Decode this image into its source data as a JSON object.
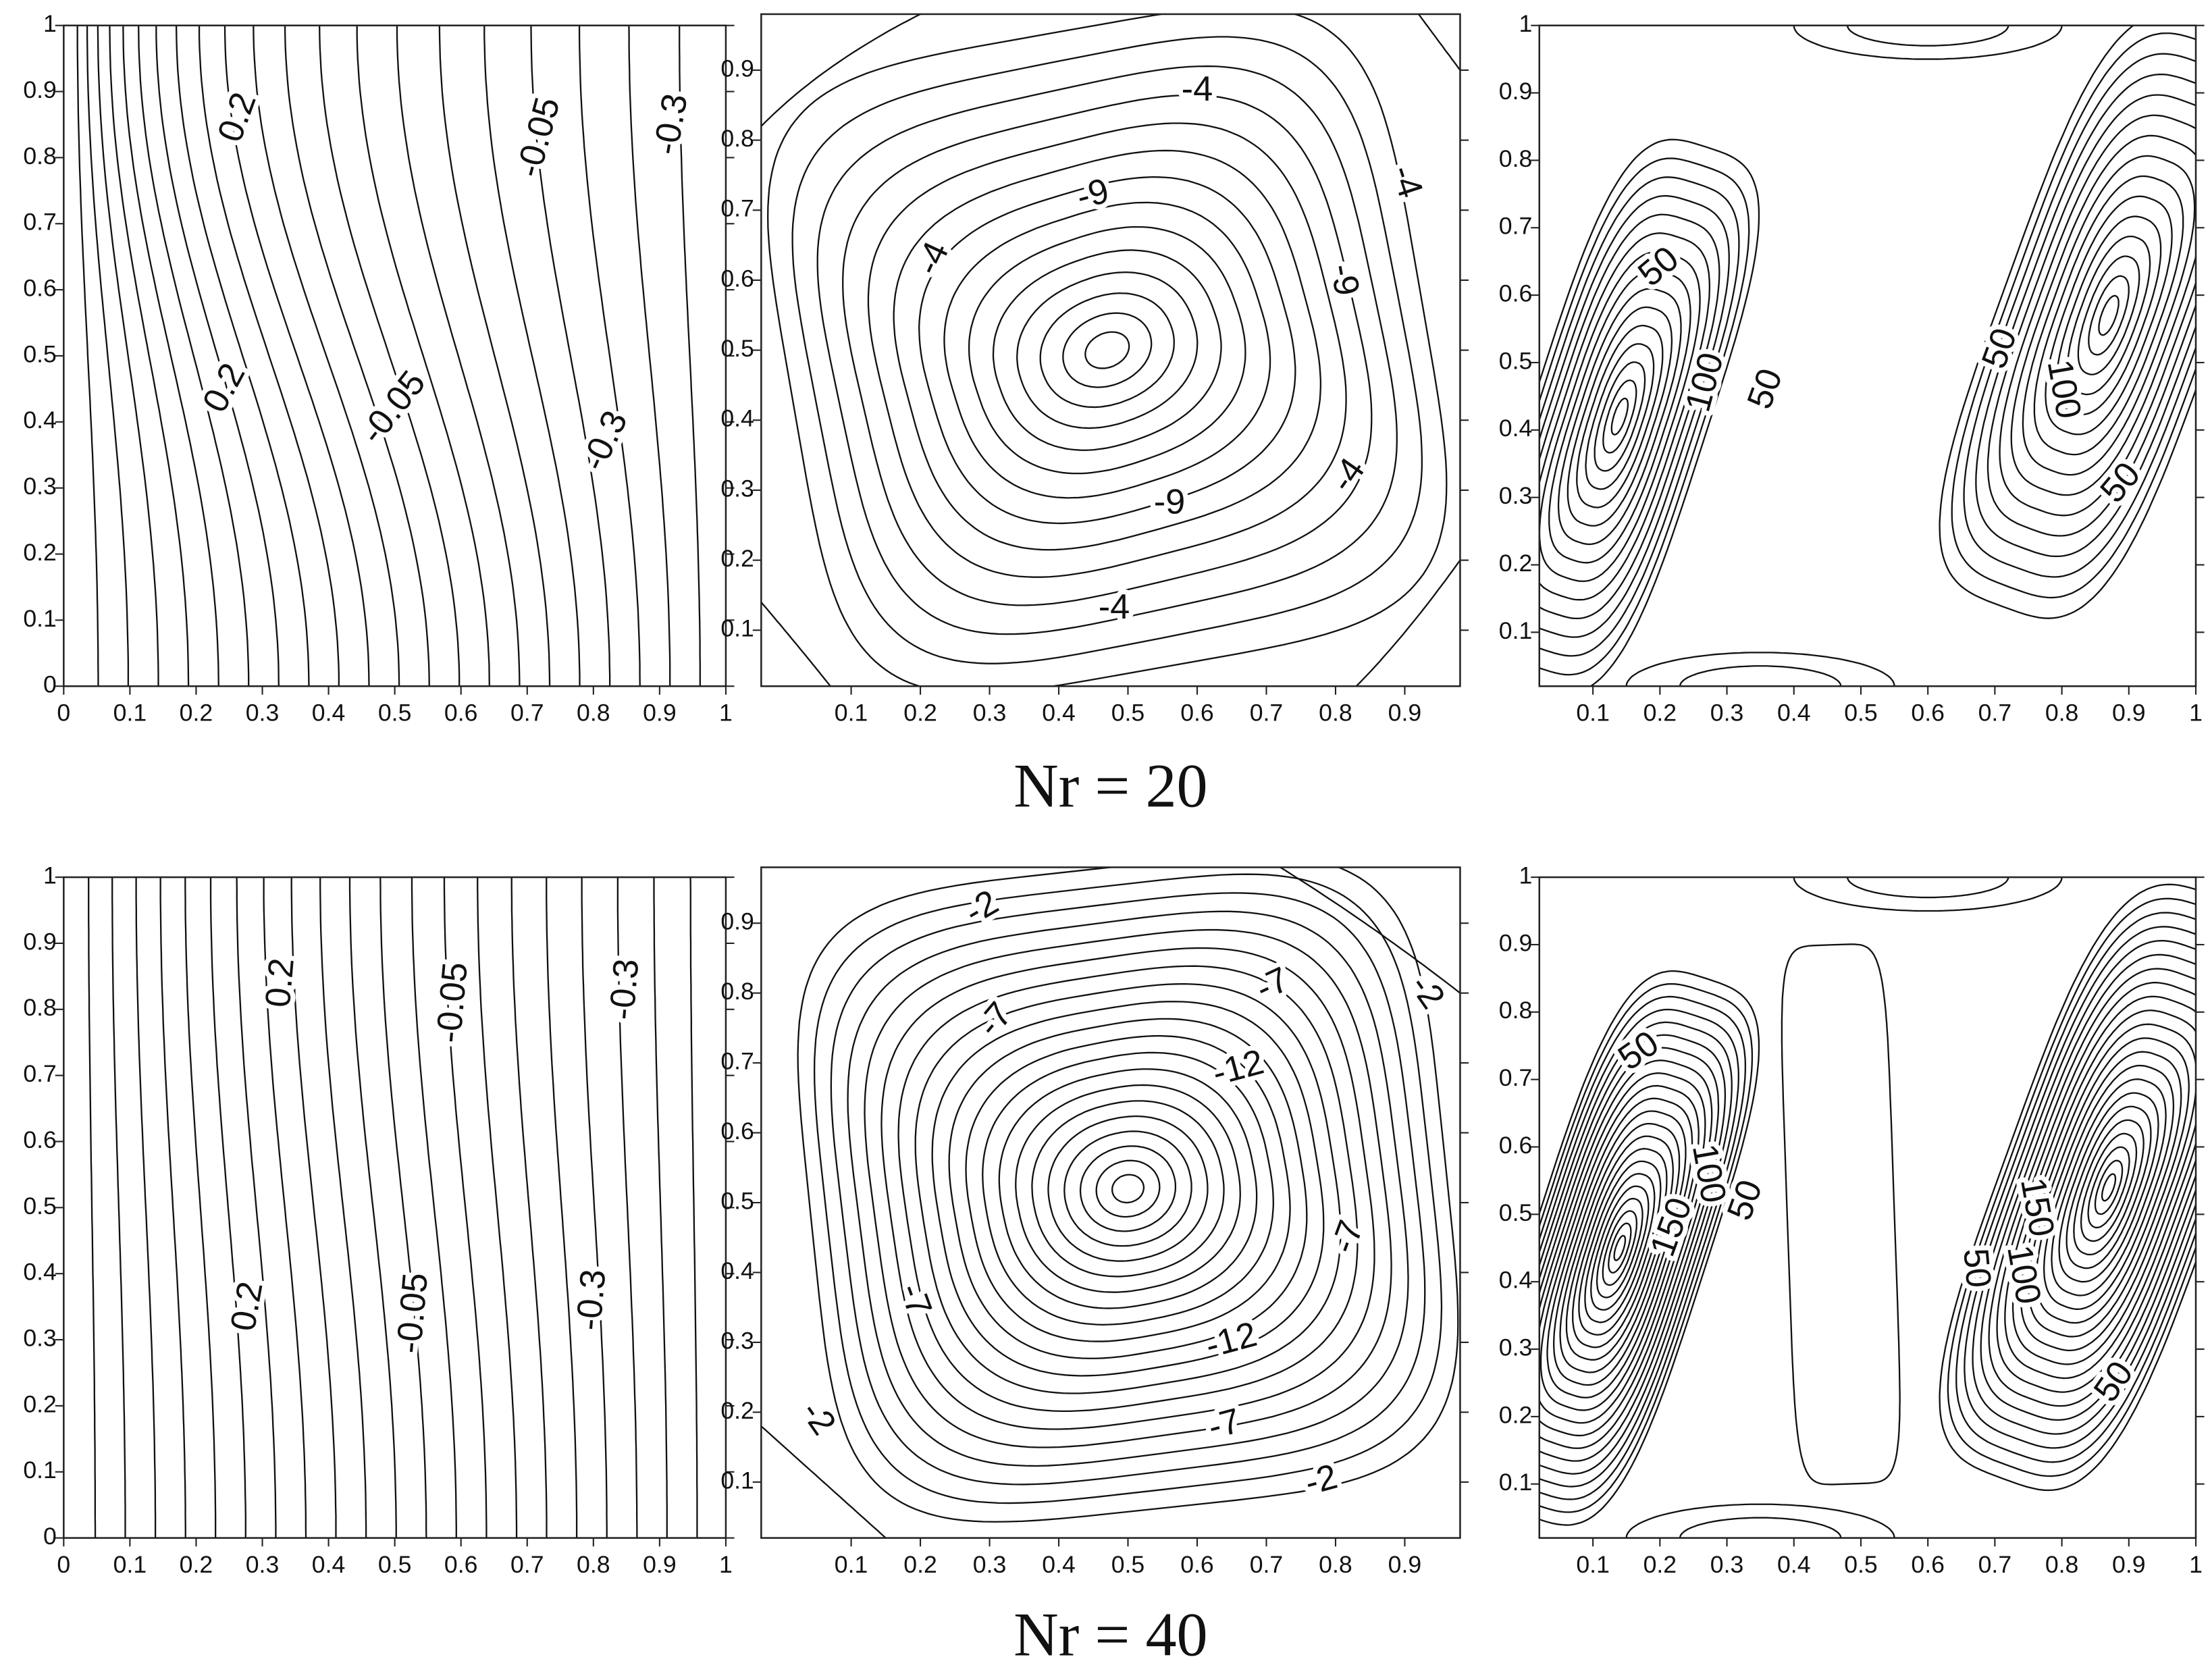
{
  "chart_data": [
    {
      "type": "contour",
      "xlim": [
        0,
        1
      ],
      "ylim": [
        0,
        1
      ],
      "xticks": [
        0,
        0.1,
        0.2,
        0.3,
        0.4,
        0.5,
        0.6,
        0.7,
        0.8,
        0.9,
        1
      ],
      "yticks": [
        0,
        0.1,
        0.2,
        0.3,
        0.4,
        0.5,
        0.6,
        0.7,
        0.8,
        0.9,
        1
      ],
      "contour_labels": [
        0.2,
        0.2,
        -0.05,
        -0.05,
        -0.3,
        -0.3
      ],
      "color": "#111111"
    },
    {
      "type": "contour",
      "xlim": [
        -0.03,
        0.98
      ],
      "ylim": [
        0.02,
        0.98
      ],
      "xticks": [
        0.1,
        0.2,
        0.3,
        0.4,
        0.5,
        0.6,
        0.7,
        0.8,
        0.9
      ],
      "yticks": [
        0.1,
        0.2,
        0.3,
        0.4,
        0.5,
        0.6,
        0.7,
        0.8,
        0.9
      ],
      "contour_labels": [
        -4,
        -4,
        -4,
        -4,
        -4,
        -9,
        -9,
        -9
      ],
      "color": "#111111"
    },
    {
      "type": "contour",
      "xlim": [
        0.02,
        1
      ],
      "ylim": [
        0.02,
        1
      ],
      "xticks": [
        0.1,
        0.2,
        0.3,
        0.4,
        0.5,
        0.6,
        0.7,
        0.8,
        0.9,
        1
      ],
      "yticks": [
        0.1,
        0.2,
        0.3,
        0.4,
        0.5,
        0.6,
        0.7,
        0.8,
        0.9,
        1
      ],
      "contour_labels": [
        50,
        100,
        50,
        50,
        100,
        50
      ],
      "color": "#111111"
    },
    {
      "type": "contour",
      "xlim": [
        0,
        1
      ],
      "ylim": [
        0,
        1
      ],
      "xticks": [
        0,
        0.1,
        0.2,
        0.3,
        0.4,
        0.5,
        0.6,
        0.7,
        0.8,
        0.9,
        1
      ],
      "yticks": [
        0,
        0.1,
        0.2,
        0.3,
        0.4,
        0.5,
        0.6,
        0.7,
        0.8,
        0.9,
        1
      ],
      "contour_labels": [
        0.2,
        0.2,
        -0.05,
        -0.05,
        -0.3,
        -0.3
      ],
      "color": "#111111"
    },
    {
      "type": "contour",
      "xlim": [
        -0.03,
        0.98
      ],
      "ylim": [
        0.02,
        0.98
      ],
      "xticks": [
        0.1,
        0.2,
        0.3,
        0.4,
        0.5,
        0.6,
        0.7,
        0.8,
        0.9
      ],
      "yticks": [
        0.1,
        0.2,
        0.3,
        0.4,
        0.5,
        0.6,
        0.7,
        0.8,
        0.9
      ],
      "contour_labels": [
        -2,
        -2,
        -7,
        -7,
        -12,
        -7,
        -7,
        -12,
        -7,
        -2,
        -2
      ],
      "color": "#111111"
    },
    {
      "type": "contour",
      "xlim": [
        0.02,
        1
      ],
      "ylim": [
        0.02,
        1
      ],
      "xticks": [
        0.1,
        0.2,
        0.3,
        0.4,
        0.5,
        0.6,
        0.7,
        0.8,
        0.9,
        1
      ],
      "yticks": [
        0.1,
        0.2,
        0.3,
        0.4,
        0.5,
        0.6,
        0.7,
        0.8,
        0.9,
        1
      ],
      "contour_labels": [
        50,
        100,
        150,
        50,
        50,
        150,
        100,
        50
      ],
      "color": "#111111"
    }
  ],
  "captions": [
    "Nr = 20",
    "Nr = 40"
  ]
}
